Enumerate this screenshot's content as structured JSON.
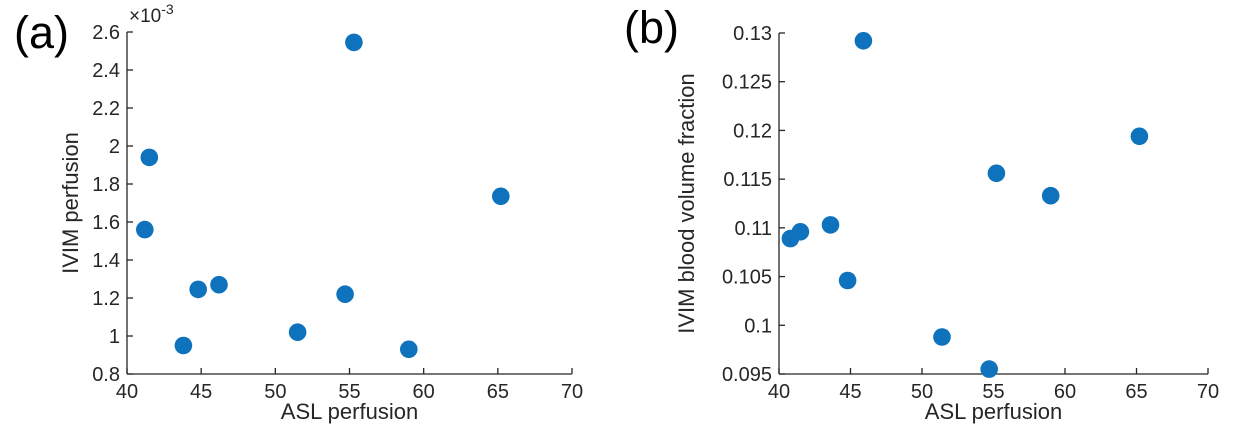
{
  "figure": {
    "background": "#ffffff",
    "axis_color": "#262626",
    "text_color": "#262626"
  },
  "chart_data": [
    {
      "type": "scatter",
      "panel_label": "(a)",
      "title": "",
      "xlabel": "ASL perfusion",
      "ylabel": "IVIM perfusion",
      "xlim": [
        40,
        70
      ],
      "ylim": [
        0.0008,
        0.0026
      ],
      "xtick_values": [
        40,
        45,
        50,
        55,
        60,
        65,
        70
      ],
      "xtick_labels": [
        "40",
        "45",
        "50",
        "55",
        "60",
        "65",
        "70"
      ],
      "ytick_values": [
        0.0008,
        0.001,
        0.0012,
        0.0014,
        0.0016,
        0.0018,
        0.002,
        0.0022,
        0.0024,
        0.0026
      ],
      "ytick_labels": [
        "0.8",
        "1",
        "1.2",
        "1.4",
        "1.6",
        "1.8",
        "2",
        "2.2",
        "2.4",
        "2.6"
      ],
      "y_exponent_base": "×10",
      "y_exponent_power": "-3",
      "grid": false,
      "legend": null,
      "marker_color": "#0f72bc",
      "points": [
        [
          41.2,
          0.00156
        ],
        [
          41.5,
          0.00194
        ],
        [
          43.8,
          0.00095
        ],
        [
          44.8,
          0.001245
        ],
        [
          46.2,
          0.00127
        ],
        [
          51.5,
          0.00102
        ],
        [
          54.7,
          0.00122
        ],
        [
          55.3,
          0.002545
        ],
        [
          59.0,
          0.00093
        ],
        [
          65.2,
          0.001735
        ]
      ]
    },
    {
      "type": "scatter",
      "panel_label": "(b)",
      "title": "",
      "xlabel": "ASL perfusion",
      "ylabel": "IVIM blood volume fraction",
      "xlim": [
        40,
        70
      ],
      "ylim": [
        0.095,
        0.13
      ],
      "xtick_values": [
        40,
        45,
        50,
        55,
        60,
        65,
        70
      ],
      "xtick_labels": [
        "40",
        "45",
        "50",
        "55",
        "60",
        "65",
        "70"
      ],
      "ytick_values": [
        0.095,
        0.1,
        0.105,
        0.11,
        0.115,
        0.12,
        0.125,
        0.13
      ],
      "ytick_labels": [
        "0.095",
        "0.1",
        "0.105",
        "0.11",
        "0.115",
        "0.12",
        "0.125",
        "0.13"
      ],
      "y_exponent_base": null,
      "y_exponent_power": null,
      "grid": false,
      "legend": null,
      "marker_color": "#0f72bc",
      "points": [
        [
          40.8,
          0.1089
        ],
        [
          41.5,
          0.1096
        ],
        [
          43.6,
          0.1103
        ],
        [
          44.8,
          0.1046
        ],
        [
          45.9,
          0.1292
        ],
        [
          51.4,
          0.0988
        ],
        [
          54.7,
          0.0955
        ],
        [
          55.2,
          0.1156
        ],
        [
          59.0,
          0.1133
        ],
        [
          65.2,
          0.1194
        ]
      ]
    }
  ]
}
